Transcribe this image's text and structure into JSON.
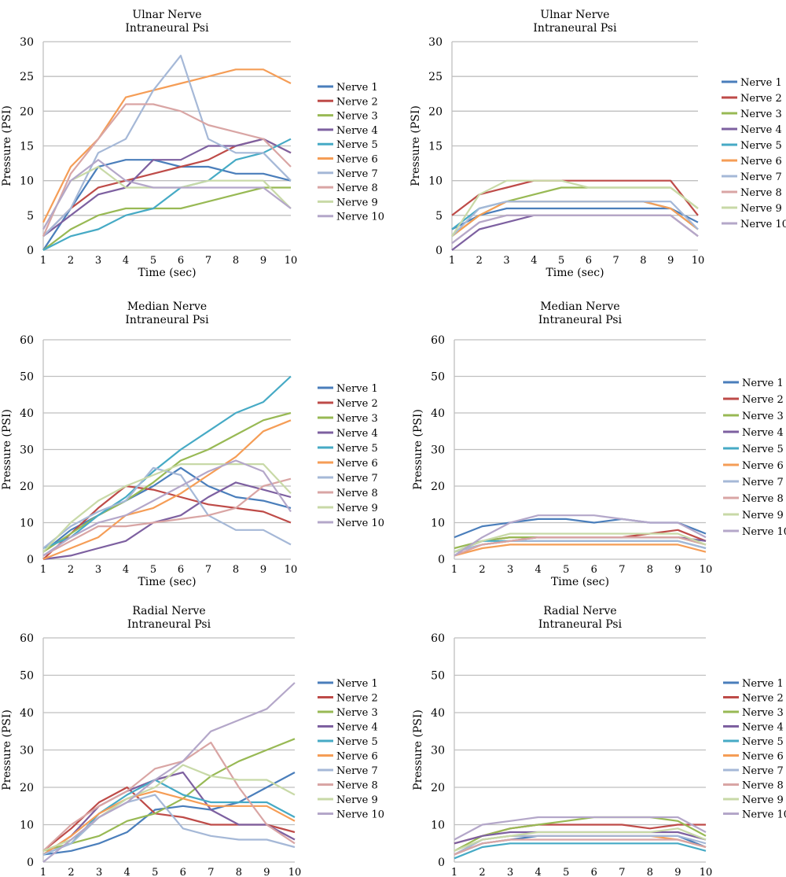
{
  "palette": [
    "#4a7ebb",
    "#be4b48",
    "#98b954",
    "#7d60a0",
    "#46aac5",
    "#f59d56",
    "#a5b8d7",
    "#d9a5a4",
    "#c8d9a7",
    "#b4a7c9"
  ],
  "chart_data": [
    {
      "type": "line",
      "title": [
        "Ulnar Nerve",
        "Intraneural Psi"
      ],
      "xlabel": "Time (sec)",
      "ylabel": "Pressure (PSI)",
      "x": [
        1,
        2,
        3,
        4,
        5,
        6,
        7,
        8,
        9,
        10
      ],
      "ylim": [
        0,
        30
      ],
      "yticks": [
        0,
        5,
        10,
        15,
        20,
        25,
        30
      ],
      "grid": true,
      "legend": "right",
      "series": [
        {
          "name": "Nerve 1",
          "values": [
            0,
            6,
            12,
            13,
            13,
            12,
            12,
            11,
            11,
            10
          ]
        },
        {
          "name": "Nerve 2",
          "values": [
            2,
            6,
            9,
            10,
            11,
            12,
            13,
            15,
            16,
            14
          ]
        },
        {
          "name": "Nerve 3",
          "values": [
            0,
            3,
            5,
            6,
            6,
            6,
            7,
            8,
            9,
            9
          ]
        },
        {
          "name": "Nerve 4",
          "values": [
            2,
            5,
            8,
            9,
            13,
            13,
            15,
            15,
            16,
            14
          ]
        },
        {
          "name": "Nerve 5",
          "values": [
            0,
            2,
            3,
            5,
            6,
            9,
            10,
            13,
            14,
            16
          ]
        },
        {
          "name": "Nerve 6",
          "values": [
            4,
            12,
            16,
            22,
            23,
            24,
            25,
            26,
            26,
            24
          ]
        },
        {
          "name": "Nerve 7",
          "values": [
            2,
            6,
            14,
            16,
            23,
            28,
            16,
            14,
            14,
            10
          ]
        },
        {
          "name": "Nerve 8",
          "values": [
            2,
            11,
            16,
            21,
            21,
            20,
            18,
            17,
            16,
            12
          ]
        },
        {
          "name": "Nerve 9",
          "values": [
            3,
            10,
            12,
            9,
            9,
            9,
            10,
            10,
            10,
            6
          ]
        },
        {
          "name": "Nerve 10",
          "values": [
            3,
            10,
            13,
            10,
            9,
            9,
            9,
            9,
            9,
            6
          ]
        }
      ]
    },
    {
      "type": "line",
      "title": [
        "Ulnar Nerve",
        "Intraneural Psi"
      ],
      "xlabel": "Time (sec)",
      "ylabel": "Pressure (PSI)",
      "x": [
        1,
        2,
        3,
        4,
        5,
        6,
        7,
        8,
        9,
        10
      ],
      "ylim": [
        0,
        30
      ],
      "yticks": [
        0,
        5,
        10,
        15,
        20,
        25,
        30
      ],
      "grid": true,
      "legend": "right",
      "series": [
        {
          "name": "Nerve 1",
          "values": [
            3,
            5,
            6,
            6,
            6,
            6,
            6,
            6,
            6,
            4
          ]
        },
        {
          "name": "Nerve 2",
          "values": [
            5,
            8,
            9,
            10,
            10,
            10,
            10,
            10,
            10,
            5
          ]
        },
        {
          "name": "Nerve 3",
          "values": [
            2,
            5,
            7,
            8,
            9,
            9,
            9,
            9,
            9,
            6
          ]
        },
        {
          "name": "Nerve 4",
          "values": [
            0,
            3,
            4,
            5,
            5,
            5,
            5,
            5,
            5,
            2
          ]
        },
        {
          "name": "Nerve 5",
          "values": [
            3,
            6,
            7,
            7,
            7,
            7,
            7,
            7,
            6,
            3
          ]
        },
        {
          "name": "Nerve 6",
          "values": [
            2,
            5,
            7,
            7,
            7,
            7,
            7,
            7,
            6,
            3
          ]
        },
        {
          "name": "Nerve 7",
          "values": [
            2,
            6,
            7,
            7,
            7,
            7,
            7,
            7,
            7,
            3
          ]
        },
        {
          "name": "Nerve 8",
          "values": [
            1,
            4,
            5,
            5,
            5,
            5,
            5,
            5,
            5,
            2
          ]
        },
        {
          "name": "Nerve 9",
          "values": [
            2,
            8,
            10,
            10,
            10,
            9,
            9,
            9,
            9,
            6
          ]
        },
        {
          "name": "Nerve 10",
          "values": [
            1,
            4,
            5,
            5,
            5,
            5,
            5,
            5,
            5,
            2
          ]
        }
      ]
    },
    {
      "type": "line",
      "title": [
        "Median Nerve",
        "Intraneural Psi"
      ],
      "xlabel": "Time (sec)",
      "ylabel": "Pressure (PSI)",
      "x": [
        1,
        2,
        3,
        4,
        5,
        6,
        7,
        8,
        9,
        10
      ],
      "ylim": [
        0,
        60
      ],
      "yticks": [
        0,
        10,
        20,
        30,
        40,
        50,
        60
      ],
      "grid": true,
      "legend": "right",
      "series": [
        {
          "name": "Nerve 1",
          "values": [
            2,
            8,
            12,
            16,
            20,
            25,
            20,
            17,
            16,
            14
          ]
        },
        {
          "name": "Nerve 2",
          "values": [
            0,
            7,
            14,
            20,
            19,
            17,
            15,
            14,
            13,
            10
          ]
        },
        {
          "name": "Nerve 3",
          "values": [
            2,
            7,
            12,
            16,
            21,
            27,
            30,
            34,
            38,
            40
          ]
        },
        {
          "name": "Nerve 4",
          "values": [
            0,
            1,
            3,
            5,
            10,
            12,
            17,
            21,
            19,
            17
          ]
        },
        {
          "name": "Nerve 5",
          "values": [
            3,
            6,
            12,
            17,
            24,
            30,
            35,
            40,
            43,
            50
          ]
        },
        {
          "name": "Nerve 6",
          "values": [
            0,
            3,
            6,
            12,
            14,
            18,
            23,
            28,
            35,
            38
          ]
        },
        {
          "name": "Nerve 7",
          "values": [
            3,
            9,
            13,
            16,
            25,
            23,
            12,
            8,
            8,
            4
          ]
        },
        {
          "name": "Nerve 8",
          "values": [
            1,
            5,
            9,
            9,
            10,
            11,
            12,
            14,
            20,
            22
          ]
        },
        {
          "name": "Nerve 9",
          "values": [
            2,
            10,
            16,
            20,
            23,
            26,
            26,
            26,
            26,
            18
          ]
        },
        {
          "name": "Nerve 10",
          "values": [
            1,
            6,
            10,
            12,
            16,
            20,
            24,
            27,
            24,
            13
          ]
        }
      ]
    },
    {
      "type": "line",
      "title": [
        "Median Nerve",
        "Intraneural Psi"
      ],
      "xlabel": "Time (sec)",
      "ylabel": "Pressure (PSI)",
      "x": [
        1,
        2,
        3,
        4,
        5,
        6,
        7,
        8,
        9,
        10
      ],
      "ylim": [
        0,
        60
      ],
      "yticks": [
        0,
        10,
        20,
        30,
        40,
        50,
        60
      ],
      "grid": true,
      "legend": "right",
      "series": [
        {
          "name": "Nerve 1",
          "values": [
            6,
            9,
            10,
            11,
            11,
            10,
            11,
            10,
            10,
            7
          ]
        },
        {
          "name": "Nerve 2",
          "values": [
            2,
            5,
            6,
            6,
            6,
            6,
            6,
            7,
            8,
            5
          ]
        },
        {
          "name": "Nerve 3",
          "values": [
            3,
            5,
            6,
            6,
            6,
            6,
            6,
            6,
            6,
            4
          ]
        },
        {
          "name": "Nerve 4",
          "values": [
            2,
            4,
            5,
            6,
            6,
            6,
            6,
            6,
            6,
            5
          ]
        },
        {
          "name": "Nerve 5",
          "values": [
            2,
            5,
            5,
            5,
            5,
            5,
            5,
            5,
            5,
            3
          ]
        },
        {
          "name": "Nerve 6",
          "values": [
            1,
            3,
            4,
            4,
            4,
            4,
            4,
            4,
            4,
            2
          ]
        },
        {
          "name": "Nerve 7",
          "values": [
            2,
            4,
            5,
            5,
            5,
            5,
            5,
            5,
            5,
            3
          ]
        },
        {
          "name": "Nerve 8",
          "values": [
            1,
            4,
            5,
            6,
            6,
            6,
            6,
            6,
            6,
            4
          ]
        },
        {
          "name": "Nerve 9",
          "values": [
            2,
            5,
            7,
            7,
            7,
            7,
            7,
            7,
            7,
            4
          ]
        },
        {
          "name": "Nerve 10",
          "values": [
            1,
            6,
            10,
            12,
            12,
            12,
            11,
            10,
            10,
            6
          ]
        }
      ]
    },
    {
      "type": "line",
      "title": [
        "Radial Nerve",
        "Intraneural Psi"
      ],
      "xlabel": "Time (sec)",
      "ylabel": "Pressure (PSI)",
      "x": [
        1,
        2,
        3,
        4,
        5,
        6,
        7,
        8,
        9,
        10
      ],
      "ylim": [
        0,
        60
      ],
      "yticks": [
        0,
        10,
        20,
        30,
        40,
        50,
        60
      ],
      "grid": true,
      "legend": "right",
      "series": [
        {
          "name": "Nerve 1",
          "values": [
            2,
            3,
            5,
            8,
            14,
            15,
            14,
            16,
            20,
            24
          ]
        },
        {
          "name": "Nerve 2",
          "values": [
            3,
            9,
            16,
            20,
            13,
            12,
            10,
            10,
            10,
            8
          ]
        },
        {
          "name": "Nerve 3",
          "values": [
            3,
            5,
            7,
            11,
            13,
            17,
            23,
            27,
            30,
            33
          ]
        },
        {
          "name": "Nerve 4",
          "values": [
            2,
            7,
            15,
            19,
            22,
            24,
            14,
            10,
            10,
            6
          ]
        },
        {
          "name": "Nerve 5",
          "values": [
            2,
            5,
            13,
            18,
            22,
            18,
            16,
            16,
            16,
            12
          ]
        },
        {
          "name": "Nerve 6",
          "values": [
            2,
            7,
            13,
            17,
            19,
            17,
            15,
            15,
            15,
            11
          ]
        },
        {
          "name": "Nerve 7",
          "values": [
            2,
            5,
            12,
            16,
            18,
            9,
            7,
            6,
            6,
            4
          ]
        },
        {
          "name": "Nerve 8",
          "values": [
            3,
            10,
            15,
            19,
            25,
            27,
            32,
            20,
            10,
            5
          ]
        },
        {
          "name": "Nerve 9",
          "values": [
            3,
            6,
            12,
            17,
            20,
            26,
            23,
            22,
            22,
            18
          ]
        },
        {
          "name": "Nerve 10",
          "values": [
            0,
            6,
            12,
            16,
            22,
            27,
            35,
            38,
            41,
            48
          ]
        }
      ]
    },
    {
      "type": "line",
      "title": [
        "Radial Nerve",
        "Intraneural Psi"
      ],
      "xlabel": "Time (sec)",
      "ylabel": "Pressure (PSI)",
      "x": [
        1,
        2,
        3,
        4,
        5,
        6,
        7,
        8,
        9,
        10
      ],
      "ylim": [
        0,
        60
      ],
      "yticks": [
        0,
        10,
        20,
        30,
        40,
        50,
        60
      ],
      "grid": true,
      "legend": "right",
      "series": [
        {
          "name": "Nerve 1",
          "values": [
            2,
            5,
            6,
            7,
            7,
            7,
            7,
            7,
            7,
            4
          ]
        },
        {
          "name": "Nerve 2",
          "values": [
            5,
            7,
            9,
            10,
            10,
            10,
            10,
            9,
            10,
            10
          ]
        },
        {
          "name": "Nerve 3",
          "values": [
            3,
            7,
            9,
            10,
            11,
            12,
            12,
            12,
            11,
            7
          ]
        },
        {
          "name": "Nerve 4",
          "values": [
            5,
            7,
            8,
            8,
            8,
            8,
            8,
            8,
            8,
            6
          ]
        },
        {
          "name": "Nerve 5",
          "values": [
            1,
            4,
            5,
            5,
            5,
            5,
            5,
            5,
            5,
            3
          ]
        },
        {
          "name": "Nerve 6",
          "values": [
            2,
            6,
            7,
            7,
            7,
            7,
            7,
            7,
            6,
            4
          ]
        },
        {
          "name": "Nerve 7",
          "values": [
            2,
            6,
            7,
            7,
            7,
            7,
            7,
            7,
            7,
            5
          ]
        },
        {
          "name": "Nerve 8",
          "values": [
            2,
            5,
            6,
            6,
            6,
            6,
            6,
            6,
            6,
            4
          ]
        },
        {
          "name": "Nerve 9",
          "values": [
            3,
            6,
            7,
            8,
            8,
            8,
            8,
            8,
            9,
            6
          ]
        },
        {
          "name": "Nerve 10",
          "values": [
            6,
            10,
            11,
            12,
            12,
            12,
            12,
            12,
            12,
            8
          ]
        }
      ]
    }
  ]
}
